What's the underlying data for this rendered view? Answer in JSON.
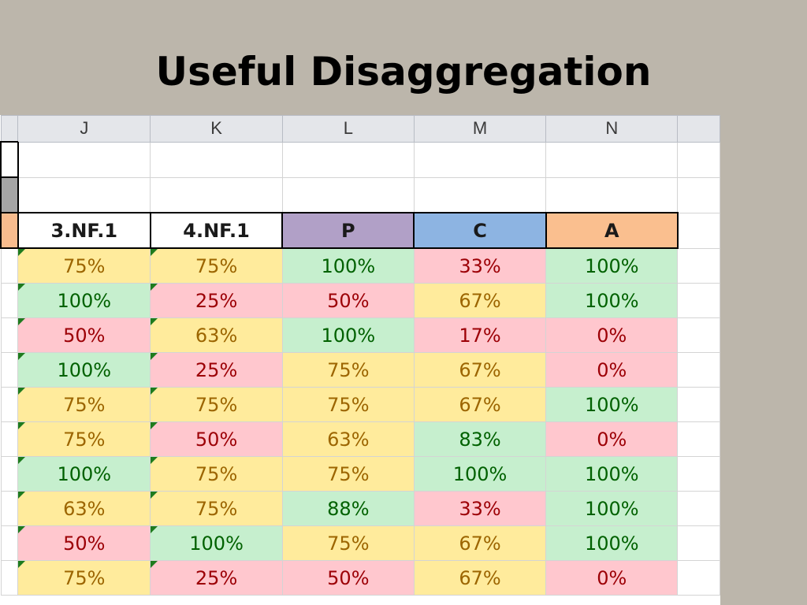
{
  "title": "Useful Disaggregation",
  "colors": {
    "slide_bg": "#bcb6ab",
    "good": "#c6efce",
    "ok": "#ffeb9c",
    "bad": "#ffc7ce",
    "P": "#b1a0c7",
    "C": "#8db4e2",
    "A": "#fabf8f",
    "left_header": "#f8bc8e"
  },
  "column_letters": [
    "J",
    "K",
    "L",
    "M",
    "N"
  ],
  "headers": [
    "3.NF.1",
    "4.NF.1",
    "P",
    "C",
    "A"
  ],
  "rows": [
    [
      "75%",
      "75%",
      "100%",
      "33%",
      "100%"
    ],
    [
      "100%",
      "25%",
      "50%",
      "67%",
      "100%"
    ],
    [
      "50%",
      "63%",
      "100%",
      "17%",
      "0%"
    ],
    [
      "100%",
      "25%",
      "75%",
      "67%",
      "0%"
    ],
    [
      "75%",
      "75%",
      "75%",
      "67%",
      "100%"
    ],
    [
      "75%",
      "50%",
      "63%",
      "83%",
      "0%"
    ],
    [
      "100%",
      "75%",
      "75%",
      "100%",
      "100%"
    ],
    [
      "63%",
      "75%",
      "88%",
      "33%",
      "100%"
    ],
    [
      "50%",
      "100%",
      "75%",
      "67%",
      "100%"
    ],
    [
      "75%",
      "25%",
      "50%",
      "67%",
      "0%"
    ]
  ]
}
